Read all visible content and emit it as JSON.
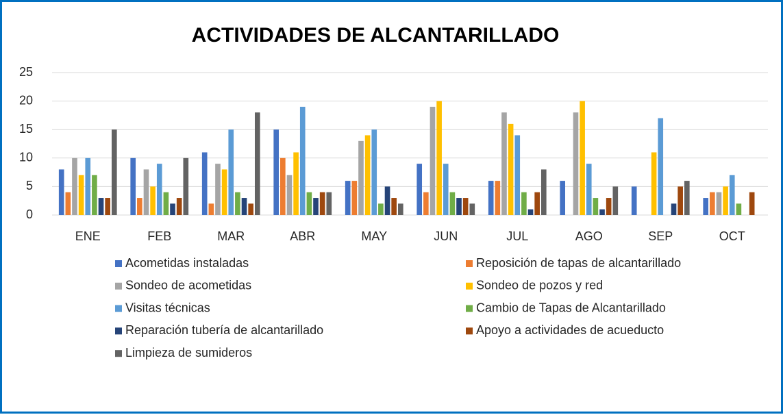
{
  "chart_data": {
    "type": "bar",
    "title": "ACTIVIDADES DE ALCANTARILLADO",
    "categories": [
      "ENE",
      "FEB",
      "MAR",
      "ABR",
      "MAY",
      "JUN",
      "JUL",
      "AGO",
      "SEP",
      "OCT"
    ],
    "series": [
      {
        "name": "Acometidas instaladas",
        "color": "#4472c4",
        "values": [
          8,
          10,
          11,
          15,
          6,
          9,
          6,
          6,
          5,
          3
        ]
      },
      {
        "name": "Reposición de tapas de alcantarillado",
        "color": "#ed7d31",
        "values": [
          4,
          3,
          2,
          10,
          6,
          4,
          6,
          0,
          0,
          4
        ]
      },
      {
        "name": "Sondeo de acometidas",
        "color": "#a5a5a5",
        "values": [
          10,
          8,
          9,
          7,
          13,
          19,
          18,
          18,
          0,
          4
        ]
      },
      {
        "name": "Sondeo de pozos y red",
        "color": "#ffc000",
        "values": [
          7,
          5,
          8,
          11,
          14,
          20,
          16,
          20,
          11,
          5
        ]
      },
      {
        "name": "Visitas técnicas",
        "color": "#5b9bd5",
        "values": [
          10,
          9,
          15,
          19,
          15,
          9,
          14,
          9,
          17,
          7
        ]
      },
      {
        "name": "Cambio de Tapas de Alcantarillado",
        "color": "#70ad47",
        "values": [
          7,
          4,
          4,
          4,
          2,
          4,
          4,
          3,
          0,
          2
        ]
      },
      {
        "name": "Reparación tubería de alcantarillado",
        "color": "#264478",
        "values": [
          3,
          2,
          3,
          3,
          5,
          3,
          1,
          1,
          2,
          0
        ]
      },
      {
        "name": "Apoyo a actividades de acueducto",
        "color": "#9e480e",
        "values": [
          3,
          3,
          2,
          4,
          3,
          3,
          4,
          3,
          5,
          4
        ]
      },
      {
        "name": "Limpieza de sumideros",
        "color": "#636363",
        "values": [
          15,
          10,
          18,
          4,
          2,
          2,
          8,
          5,
          6,
          0
        ]
      }
    ],
    "ylim": [
      0,
      25
    ],
    "yticks": [
      0,
      5,
      10,
      15,
      20,
      25
    ],
    "grid": true
  }
}
